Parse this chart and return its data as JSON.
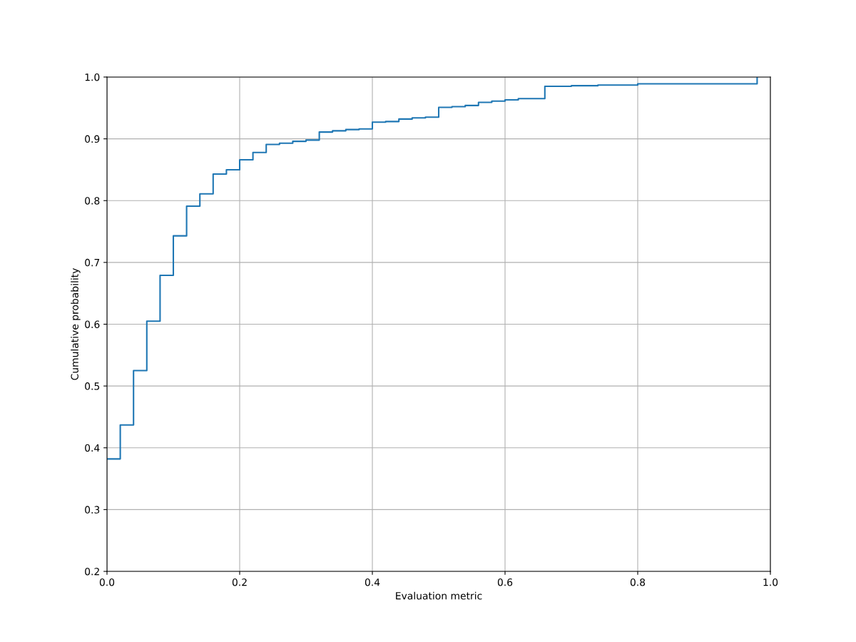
{
  "chart_data": {
    "type": "step",
    "xlabel": "Evaluation metric",
    "ylabel": "Cumulative probability",
    "x": [
      0.0,
      0.02,
      0.04,
      0.06,
      0.08,
      0.1,
      0.12,
      0.14,
      0.16,
      0.18,
      0.2,
      0.22,
      0.24,
      0.26,
      0.28,
      0.3,
      0.32,
      0.34,
      0.36,
      0.38,
      0.4,
      0.42,
      0.44,
      0.46,
      0.48,
      0.5,
      0.52,
      0.54,
      0.56,
      0.58,
      0.6,
      0.62,
      0.66,
      0.7,
      0.74,
      0.8,
      0.98
    ],
    "series": [
      {
        "color": "#1f77b4",
        "values": [
          0.382,
          0.437,
          0.525,
          0.605,
          0.679,
          0.743,
          0.791,
          0.811,
          0.843,
          0.85,
          0.866,
          0.878,
          0.891,
          0.893,
          0.896,
          0.898,
          0.911,
          0.913,
          0.915,
          0.916,
          0.927,
          0.928,
          0.932,
          0.934,
          0.935,
          0.951,
          0.952,
          0.954,
          0.959,
          0.961,
          0.963,
          0.965,
          0.985,
          0.986,
          0.987,
          0.989,
          1.0
        ]
      }
    ],
    "xlim": [
      0,
      1
    ],
    "ylim": [
      0.2,
      1
    ],
    "xticks": [
      {
        "value": 0,
        "label": "0.0"
      },
      0.2,
      0.4,
      0.6,
      0.8,
      {
        "value": 1,
        "label": "1.0"
      }
    ],
    "yticks": [
      0.2,
      0.3,
      0.4,
      0.5,
      0.6,
      0.7,
      0.8,
      0.9,
      {
        "value": 1,
        "label": "1.0"
      }
    ],
    "grid": true
  }
}
